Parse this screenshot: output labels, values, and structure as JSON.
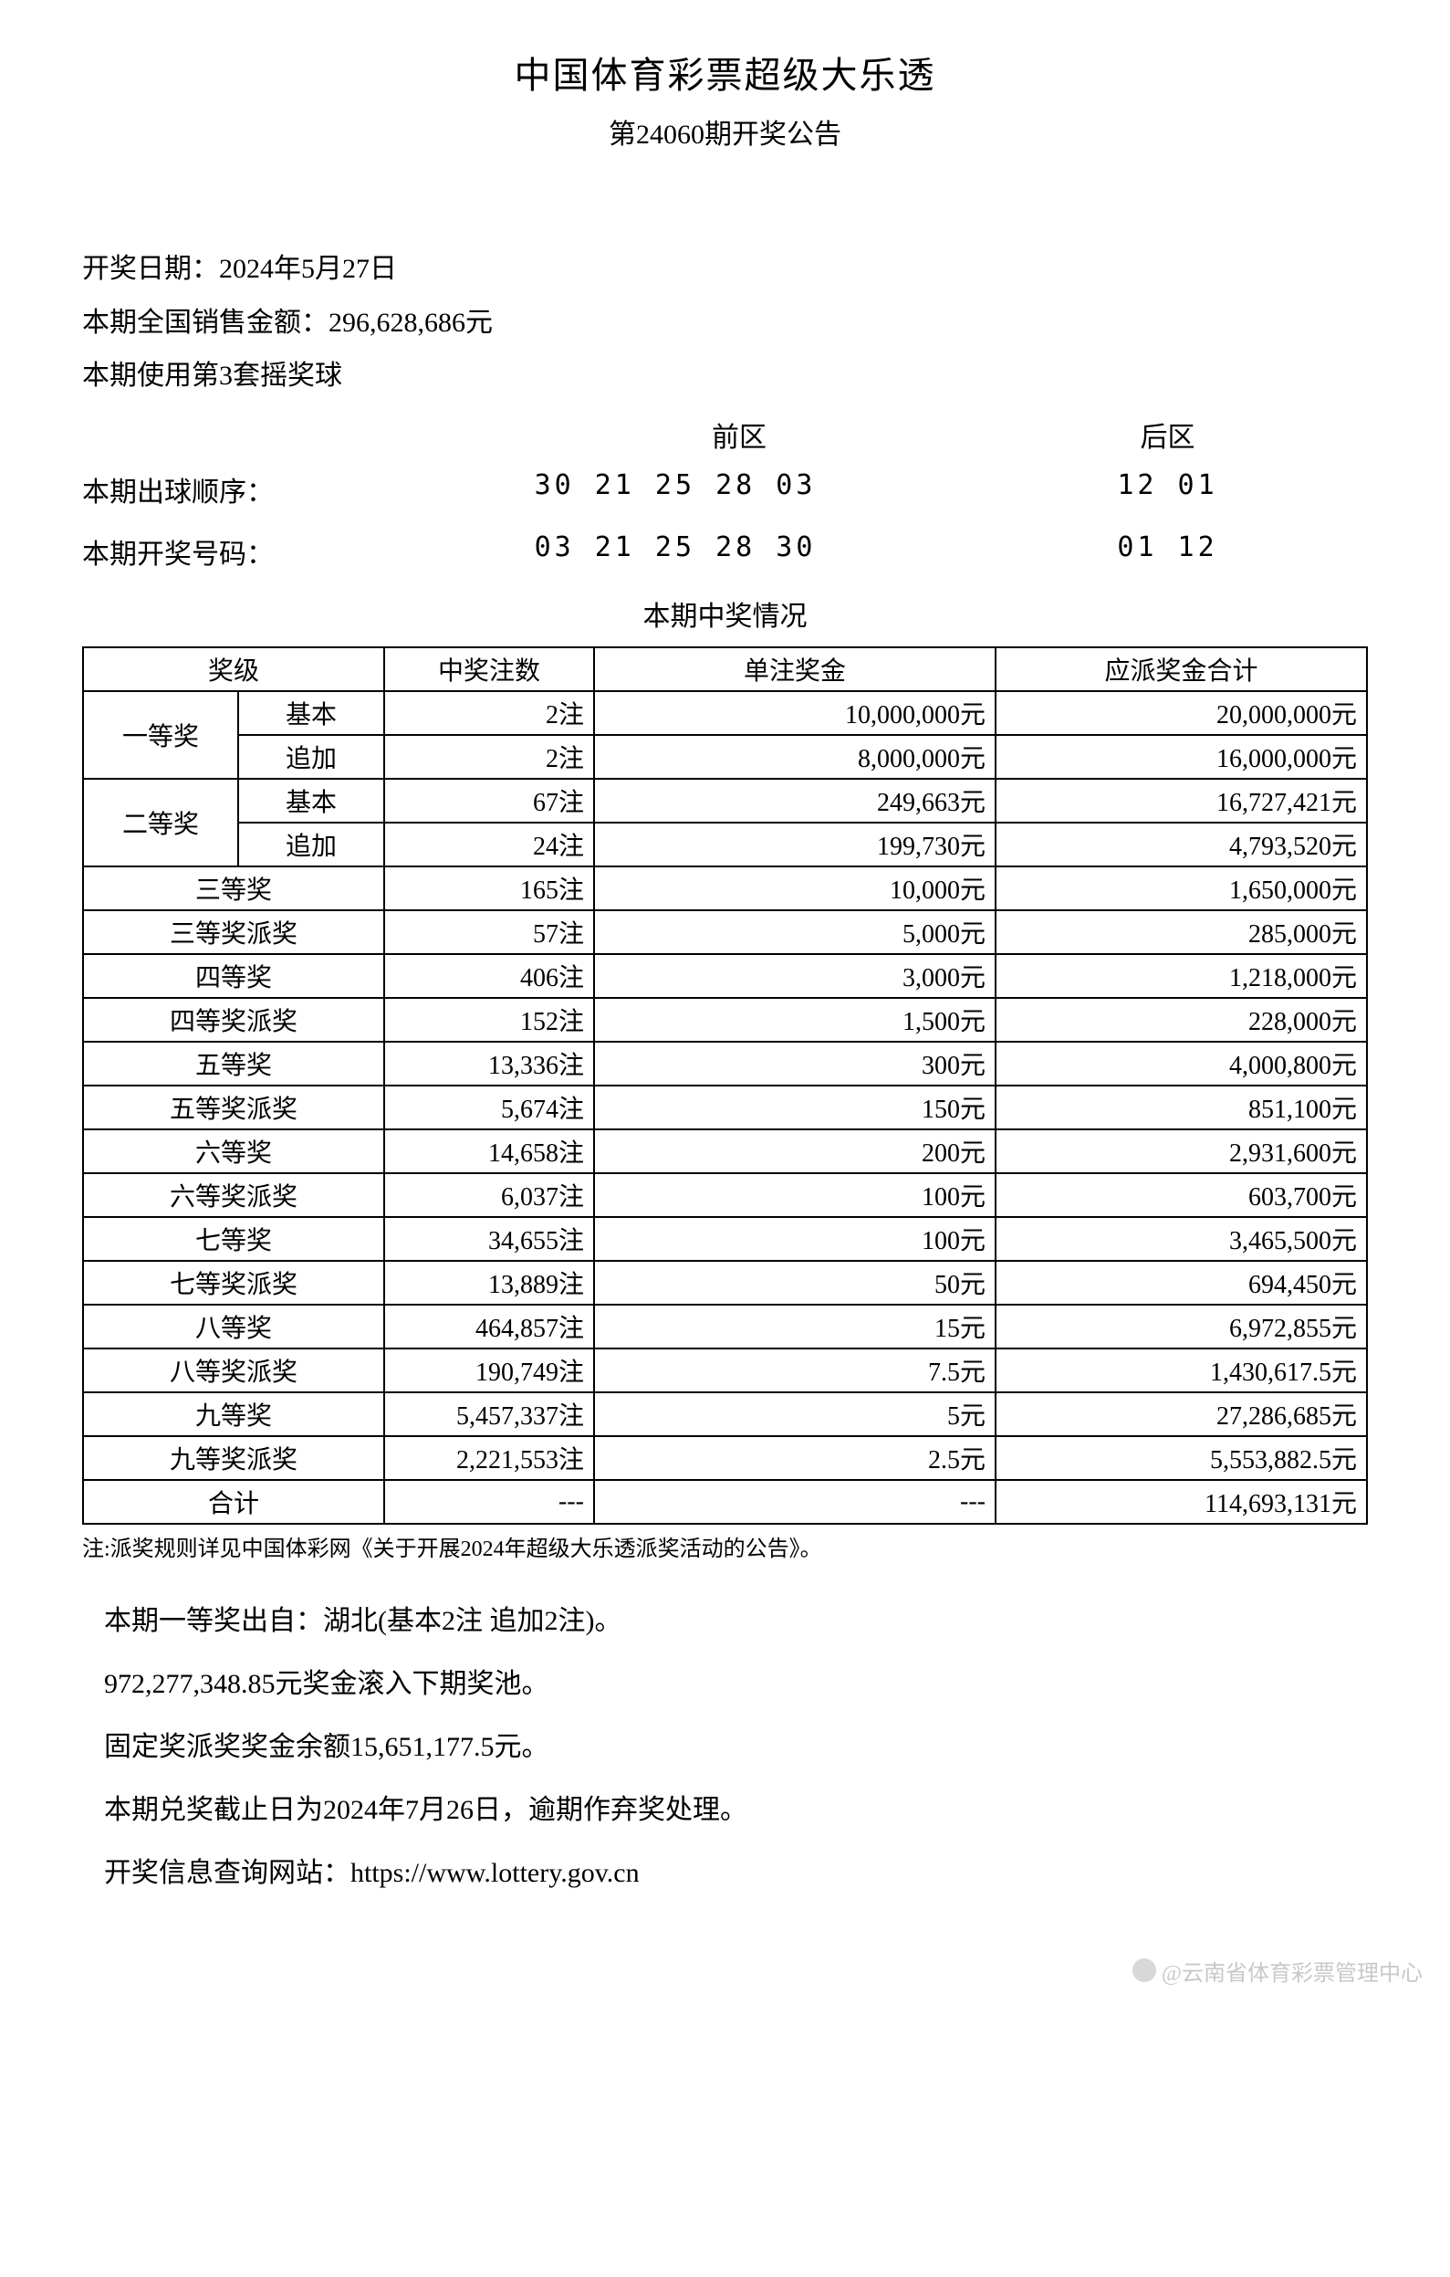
{
  "title": "中国体育彩票超级大乐透",
  "subtitle": "第24060期开奖公告",
  "draw_date_label": "开奖日期：",
  "draw_date": "2024年5月27日",
  "sales_label": "本期全国销售金额：",
  "sales_amount": "296,628,686元",
  "ball_set": "本期使用第3套摇奖球",
  "zone_front": "前区",
  "zone_back": "后区",
  "draw_order_label": "本期出球顺序：",
  "draw_order_front": "30 21 25 28 03",
  "draw_order_back": "12 01",
  "winning_label": "本期开奖号码：",
  "winning_front": "03 21 25 28 30",
  "winning_back": "01 12",
  "results_header": "本期中奖情况",
  "table": {
    "headers": {
      "tier": "奖级",
      "count": "中奖注数",
      "unit_prize": "单注奖金",
      "total_prize": "应派奖金合计"
    },
    "tier1": {
      "name": "一等奖",
      "basic_label": "基本",
      "basic_count": "2注",
      "basic_unit": "10,000,000元",
      "basic_total": "20,000,000元",
      "add_label": "追加",
      "add_count": "2注",
      "add_unit": "8,000,000元",
      "add_total": "16,000,000元"
    },
    "tier2": {
      "name": "二等奖",
      "basic_label": "基本",
      "basic_count": "67注",
      "basic_unit": "249,663元",
      "basic_total": "16,727,421元",
      "add_label": "追加",
      "add_count": "24注",
      "add_unit": "199,730元",
      "add_total": "4,793,520元"
    },
    "rows": [
      {
        "name": "三等奖",
        "count": "165注",
        "unit": "10,000元",
        "total": "1,650,000元"
      },
      {
        "name": "三等奖派奖",
        "count": "57注",
        "unit": "5,000元",
        "total": "285,000元"
      },
      {
        "name": "四等奖",
        "count": "406注",
        "unit": "3,000元",
        "total": "1,218,000元"
      },
      {
        "name": "四等奖派奖",
        "count": "152注",
        "unit": "1,500元",
        "total": "228,000元"
      },
      {
        "name": "五等奖",
        "count": "13,336注",
        "unit": "300元",
        "total": "4,000,800元"
      },
      {
        "name": "五等奖派奖",
        "count": "5,674注",
        "unit": "150元",
        "total": "851,100元"
      },
      {
        "name": "六等奖",
        "count": "14,658注",
        "unit": "200元",
        "total": "2,931,600元"
      },
      {
        "name": "六等奖派奖",
        "count": "6,037注",
        "unit": "100元",
        "total": "603,700元"
      },
      {
        "name": "七等奖",
        "count": "34,655注",
        "unit": "100元",
        "total": "3,465,500元"
      },
      {
        "name": "七等奖派奖",
        "count": "13,889注",
        "unit": "50元",
        "total": "694,450元"
      },
      {
        "name": "八等奖",
        "count": "464,857注",
        "unit": "15元",
        "total": "6,972,855元"
      },
      {
        "name": "八等奖派奖",
        "count": "190,749注",
        "unit": "7.5元",
        "total": "1,430,617.5元"
      },
      {
        "name": "九等奖",
        "count": "5,457,337注",
        "unit": "5元",
        "total": "27,286,685元"
      },
      {
        "name": "九等奖派奖",
        "count": "2,221,553注",
        "unit": "2.5元",
        "total": "5,553,882.5元"
      }
    ],
    "total_row": {
      "name": "合计",
      "count": "---",
      "unit": "---",
      "total": "114,693,131元"
    }
  },
  "note": "注:派奖规则详见中国体彩网《关于开展2024年超级大乐透派奖活动的公告》。",
  "footer": {
    "line1": "本期一等奖出自：湖北(基本2注 追加2注)。",
    "line2": "972,277,348.85元奖金滚入下期奖池。",
    "line3": "固定奖派奖奖金余额15,651,177.5元。",
    "line4": "本期兑奖截止日为2024年7月26日，逾期作弃奖处理。",
    "line5": "开奖信息查询网站：https://www.lottery.gov.cn"
  },
  "watermark": "@云南省体育彩票管理中心"
}
